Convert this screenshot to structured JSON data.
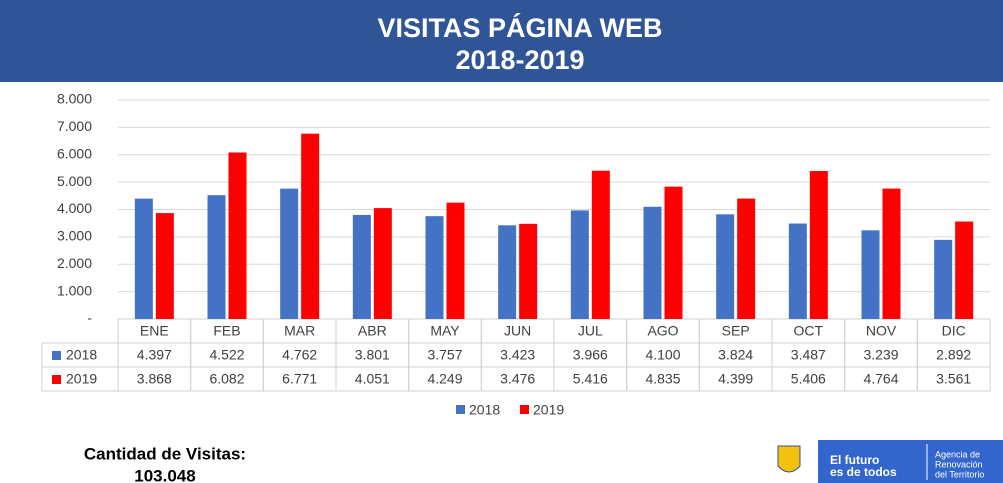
{
  "chart_data": {
    "type": "bar",
    "title": "VISITAS PÁGINA WEB",
    "subtitle": "2018-2019",
    "categories": [
      "ENE",
      "FEB",
      "MAR",
      "ABR",
      "MAY",
      "JUN",
      "JUL",
      "AGO",
      "SEP",
      "OCT",
      "NOV",
      "DIC"
    ],
    "series": [
      {
        "name": "2018",
        "color": "#4472c4",
        "values": [
          4397,
          4522,
          4762,
          3801,
          3757,
          3423,
          3966,
          4100,
          3824,
          3487,
          3239,
          2892
        ],
        "value_labels": [
          "4.397",
          "4.522",
          "4.762",
          "3.801",
          "3.757",
          "3.423",
          "3.966",
          "4.100",
          "3.824",
          "3.487",
          "3.239",
          "2.892"
        ]
      },
      {
        "name": "2019",
        "color": "#ff0000",
        "values": [
          3868,
          6082,
          6771,
          4051,
          4249,
          3476,
          5416,
          4835,
          4399,
          5406,
          4764,
          3561
        ],
        "value_labels": [
          "3.868",
          "6.082",
          "6.771",
          "4.051",
          "4.249",
          "3.476",
          "5.416",
          "4.835",
          "4.399",
          "5.406",
          "4.764",
          "3.561"
        ]
      }
    ],
    "ylim": [
      0,
      8000
    ],
    "yticks": [
      {
        "value": 0,
        "label": "-"
      },
      {
        "value": 1000,
        "label": "1.000"
      },
      {
        "value": 2000,
        "label": "2.000"
      },
      {
        "value": 3000,
        "label": "3.000"
      },
      {
        "value": 4000,
        "label": "4.000"
      },
      {
        "value": 5000,
        "label": "5.000"
      },
      {
        "value": 6000,
        "label": "6.000"
      },
      {
        "value": 7000,
        "label": "7.000"
      },
      {
        "value": 8000,
        "label": "8.000"
      }
    ],
    "grid": true,
    "legend": "bottom"
  },
  "footer": {
    "label": "Cantidad de Visitas:",
    "total": "103.048",
    "logo_text": [
      "El futuro",
      "es de todos"
    ],
    "agency_text": [
      "Agencia de",
      "Renovación",
      "del Territorio"
    ]
  }
}
